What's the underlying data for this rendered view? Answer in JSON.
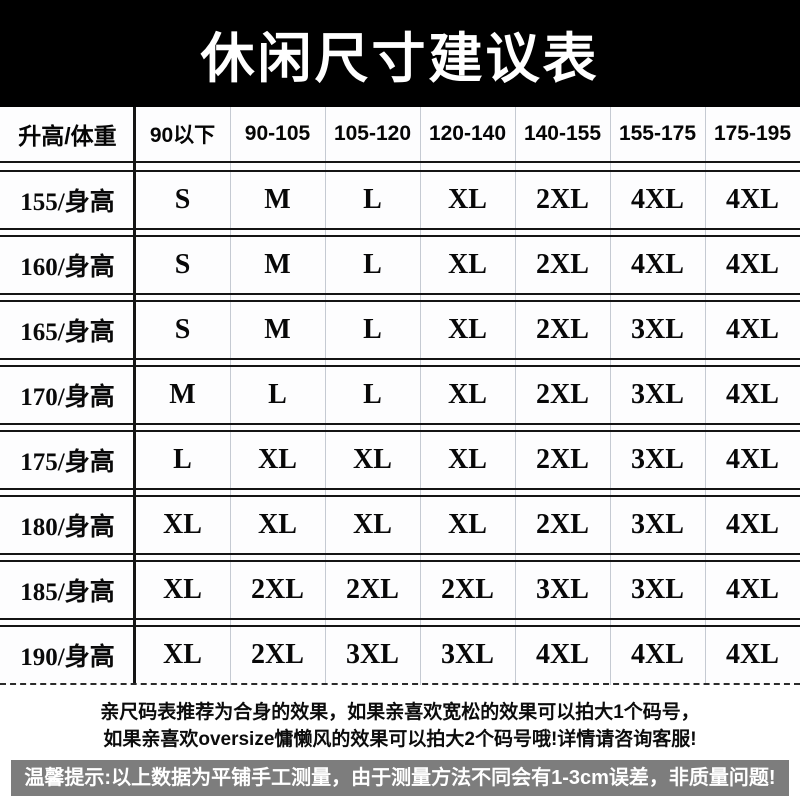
{
  "title": "休闲尺寸建议表",
  "table": {
    "corner_header": "升高/体重",
    "weight_headers": [
      "90以下",
      "90-105",
      "105-120",
      "120-140",
      "140-155",
      "155-175",
      "175-195"
    ],
    "rows": [
      {
        "label": "155/身高",
        "sizes": [
          "S",
          "M",
          "L",
          "XL",
          "2XL",
          "4XL",
          "4XL"
        ]
      },
      {
        "label": "160/身高",
        "sizes": [
          "S",
          "M",
          "L",
          "XL",
          "2XL",
          "4XL",
          "4XL"
        ]
      },
      {
        "label": "165/身高",
        "sizes": [
          "S",
          "M",
          "L",
          "XL",
          "2XL",
          "3XL",
          "4XL"
        ]
      },
      {
        "label": "170/身高",
        "sizes": [
          "M",
          "L",
          "L",
          "XL",
          "2XL",
          "3XL",
          "4XL"
        ]
      },
      {
        "label": "175/身高",
        "sizes": [
          "L",
          "XL",
          "XL",
          "XL",
          "2XL",
          "3XL",
          "4XL"
        ]
      },
      {
        "label": "180/身高",
        "sizes": [
          "XL",
          "XL",
          "XL",
          "XL",
          "2XL",
          "3XL",
          "4XL"
        ]
      },
      {
        "label": "185/身高",
        "sizes": [
          "XL",
          "2XL",
          "2XL",
          "2XL",
          "3XL",
          "3XL",
          "4XL"
        ]
      },
      {
        "label": "190/身高",
        "sizes": [
          "XL",
          "2XL",
          "3XL",
          "3XL",
          "4XL",
          "4XL",
          "4XL"
        ]
      }
    ]
  },
  "notes": {
    "line1": "亲尺码表推荐为合身的效果，如果亲喜欢宽松的效果可以拍大1个码号，",
    "line2": "如果亲喜欢oversize慵懒风的效果可以拍大2个码号哦!详情请咨询客服!",
    "tip": "温馨提示:以上数据为平铺手工测量，由于测量方法不同会有1-3cm误差，非质量问题!"
  },
  "colors": {
    "banner_bg": "#000000",
    "title_text": "#ffffff",
    "tip_bar_bg": "#7d7d7d",
    "grid_strong": "#141414",
    "grid_thin": "#c5cad2"
  }
}
